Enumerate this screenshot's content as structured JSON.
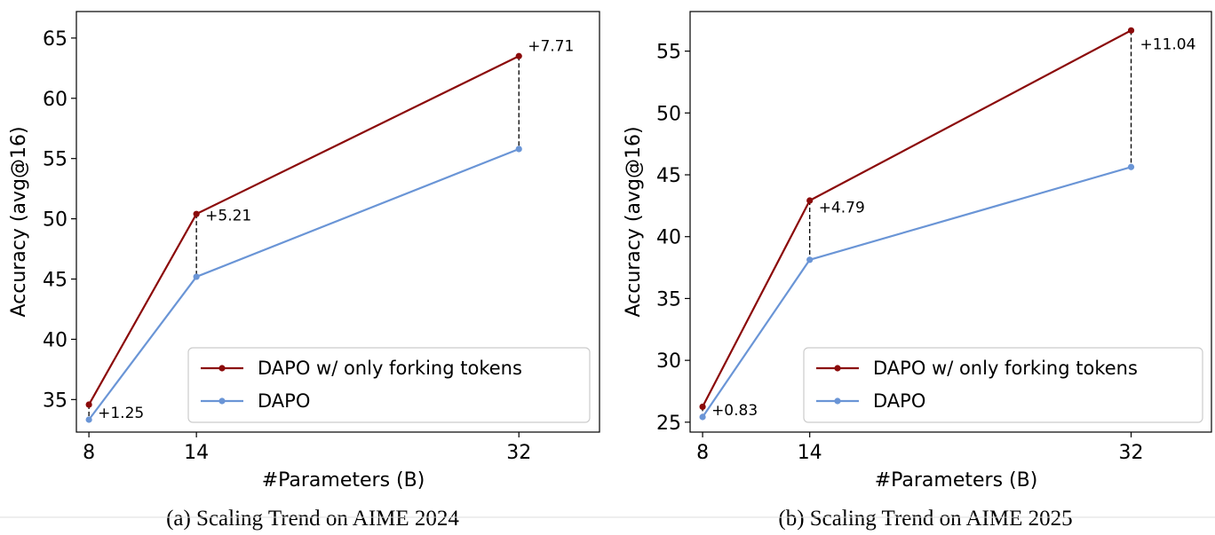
{
  "colors": {
    "dapo_forking": "#8B0A0A",
    "dapo": "#6A95D6"
  },
  "chart_data": [
    {
      "type": "line",
      "title": "",
      "caption": "(a) Scaling Trend on AIME 2024",
      "xlabel": "#Parameters (B)",
      "ylabel": "Accuracy (avg@16)",
      "x": [
        8,
        14,
        32
      ],
      "xticks": [
        "8",
        "14",
        "32"
      ],
      "xlim": [
        7.3,
        36.5
      ],
      "yticks": [
        35,
        40,
        45,
        50,
        55,
        60,
        65
      ],
      "ylim": [
        32.3,
        67.2
      ],
      "grid": false,
      "legend_position": "lower-right",
      "series": [
        {
          "name": "DAPO w/ only forking tokens",
          "values": [
            34.58,
            50.4,
            63.5
          ],
          "color": "#8B0A0A"
        },
        {
          "name": "DAPO",
          "values": [
            33.33,
            45.19,
            55.79
          ],
          "color": "#6A95D6"
        }
      ],
      "annotations": [
        {
          "x": 8,
          "text": "+1.25"
        },
        {
          "x": 14,
          "text": "+5.21"
        },
        {
          "x": 32,
          "text": "+7.71"
        }
      ]
    },
    {
      "type": "line",
      "title": "",
      "caption": "(b) Scaling Trend on AIME 2025",
      "xlabel": "#Parameters (B)",
      "ylabel": "Accuracy (avg@16)",
      "x": [
        8,
        14,
        32
      ],
      "xticks": [
        "8",
        "14",
        "32"
      ],
      "xlim": [
        7.3,
        36.5
      ],
      "yticks": [
        25,
        30,
        35,
        40,
        45,
        50,
        55
      ],
      "ylim": [
        24.2,
        58.2
      ],
      "grid": false,
      "legend_position": "lower-right",
      "series": [
        {
          "name": "DAPO w/ only forking tokens",
          "values": [
            26.25,
            42.92,
            56.67
          ],
          "color": "#8B0A0A"
        },
        {
          "name": "DAPO",
          "values": [
            25.42,
            38.13,
            45.63
          ],
          "color": "#6A95D6"
        }
      ],
      "annotations": [
        {
          "x": 8,
          "text": "+0.83"
        },
        {
          "x": 14,
          "text": "+4.79"
        },
        {
          "x": 32,
          "text": "+11.04"
        }
      ]
    }
  ]
}
